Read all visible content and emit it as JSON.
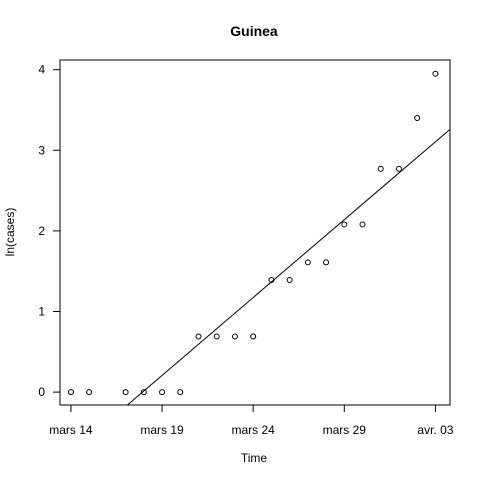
{
  "chart_data": {
    "type": "scatter",
    "title": "Guinea",
    "xlabel": "Time",
    "ylabel": "ln(cases)",
    "xlim": [
      13.4,
      34.8
    ],
    "ylim": [
      -0.16,
      4.12
    ],
    "xticks": [
      {
        "x": 14,
        "label": "mars 14"
      },
      {
        "x": 19,
        "label": "mars 19"
      },
      {
        "x": 24,
        "label": "mars 24"
      },
      {
        "x": 29,
        "label": "mars 29"
      },
      {
        "x": 34,
        "label": "avr. 03"
      }
    ],
    "yticks": [
      0,
      1,
      2,
      3,
      4
    ],
    "points": [
      {
        "x": 14,
        "y": 0
      },
      {
        "x": 15,
        "y": 0
      },
      {
        "x": 17,
        "y": 0
      },
      {
        "x": 18,
        "y": 0
      },
      {
        "x": 19,
        "y": 0
      },
      {
        "x": 20,
        "y": 0
      },
      {
        "x": 21,
        "y": 0.69
      },
      {
        "x": 22,
        "y": 0.69
      },
      {
        "x": 23,
        "y": 0.69
      },
      {
        "x": 24,
        "y": 0.69
      },
      {
        "x": 25,
        "y": 1.39
      },
      {
        "x": 26,
        "y": 1.39
      },
      {
        "x": 27,
        "y": 1.61
      },
      {
        "x": 28,
        "y": 1.61
      },
      {
        "x": 29,
        "y": 2.08
      },
      {
        "x": 30,
        "y": 2.08
      },
      {
        "x": 31,
        "y": 2.77
      },
      {
        "x": 32,
        "y": 2.77
      },
      {
        "x": 33,
        "y": 3.4
      },
      {
        "x": 34,
        "y": 3.95
      }
    ],
    "fit_line": {
      "x0": 17.1,
      "y0": -0.16,
      "x1": 34.8,
      "y1": 3.26
    },
    "grid": false,
    "legend": "none"
  }
}
